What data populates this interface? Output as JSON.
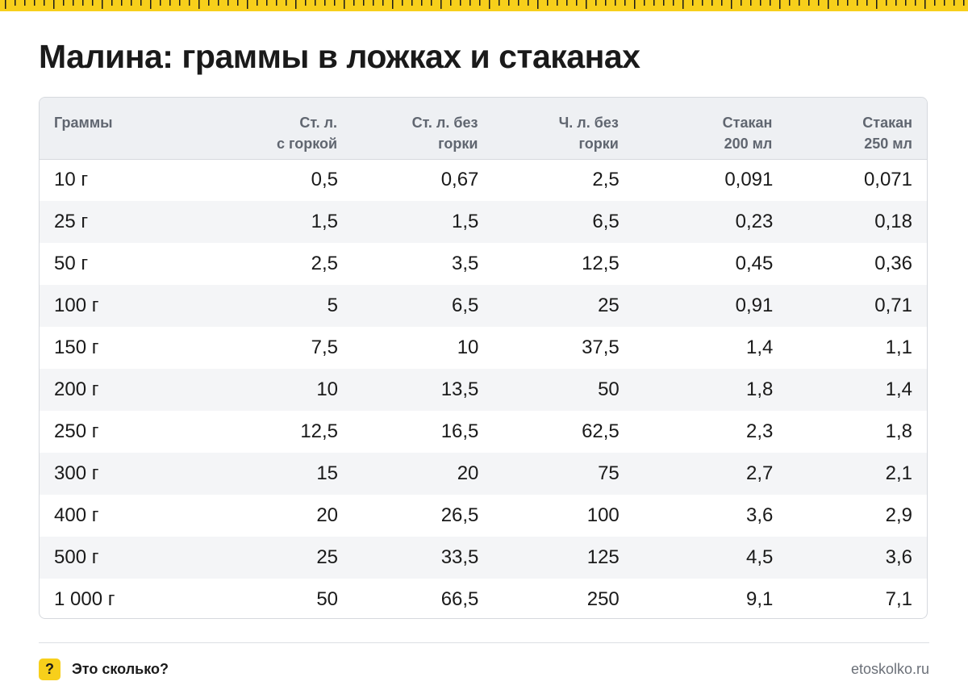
{
  "title": "Малина: граммы в ложках и стаканах",
  "table": {
    "headers": [
      [
        "Граммы"
      ],
      [
        "Ст. л.",
        "с горкой"
      ],
      [
        "Ст. л. без",
        "горки"
      ],
      [
        "Ч. л. без",
        "горки"
      ],
      [
        "Стакан",
        "200 мл"
      ],
      [
        "Стакан",
        "250 мл"
      ]
    ],
    "rows": [
      [
        "10 г",
        "0,5",
        "0,67",
        "2,5",
        "0,091",
        "0,071"
      ],
      [
        "25 г",
        "1,5",
        "1,5",
        "6,5",
        "0,23",
        "0,18"
      ],
      [
        "50 г",
        "2,5",
        "3,5",
        "12,5",
        "0,45",
        "0,36"
      ],
      [
        "100 г",
        "5",
        "6,5",
        "25",
        "0,91",
        "0,71"
      ],
      [
        "150 г",
        "7,5",
        "10",
        "37,5",
        "1,4",
        "1,1"
      ],
      [
        "200 г",
        "10",
        "13,5",
        "50",
        "1,8",
        "1,4"
      ],
      [
        "250 г",
        "12,5",
        "16,5",
        "62,5",
        "2,3",
        "1,8"
      ],
      [
        "300 г",
        "15",
        "20",
        "75",
        "2,7",
        "2,1"
      ],
      [
        "400 г",
        "20",
        "26,5",
        "100",
        "3,6",
        "2,9"
      ],
      [
        "500 г",
        "25",
        "33,5",
        "125",
        "4,5",
        "3,6"
      ],
      [
        "1 000 г",
        "50",
        "66,5",
        "250",
        "9,1",
        "7,1"
      ]
    ]
  },
  "footer": {
    "badge": "?",
    "brand": "Это сколько?",
    "site": "etoskolko.ru"
  },
  "colors": {
    "accent": "#f7cf1b",
    "header_bg": "#eef0f3",
    "stripe_bg": "#f4f5f7",
    "border": "#d6d9de",
    "text": "#1a1a1a",
    "header_text": "#606670"
  },
  "icons": {
    "ruler": "ruler-strip-decoration",
    "help": "question-mark-icon"
  }
}
